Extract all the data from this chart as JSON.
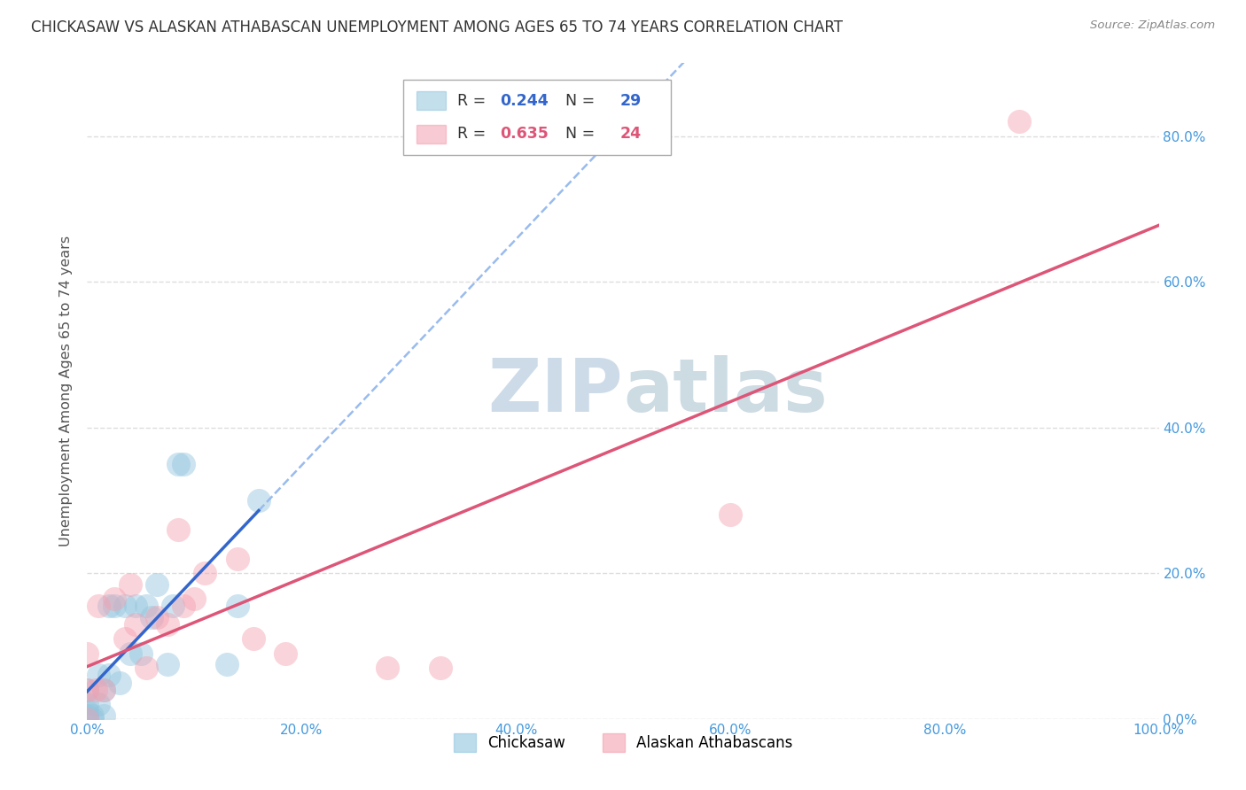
{
  "title": "CHICKASAW VS ALASKAN ATHABASCAN UNEMPLOYMENT AMONG AGES 65 TO 74 YEARS CORRELATION CHART",
  "source": "Source: ZipAtlas.com",
  "ylabel": "Unemployment Among Ages 65 to 74 years",
  "watermark": "ZIPAtlas",
  "xlim": [
    0,
    1.0
  ],
  "ylim": [
    0,
    0.9
  ],
  "xticks": [
    0.0,
    0.2,
    0.4,
    0.6,
    0.8,
    1.0
  ],
  "xticklabels": [
    "0.0%",
    "20.0%",
    "40.0%",
    "60.0%",
    "80.0%",
    "100.0%"
  ],
  "yticks": [
    0.0,
    0.2,
    0.4,
    0.6,
    0.8
  ],
  "right_yticklabels": [
    "0.0%",
    "20.0%",
    "40.0%",
    "60.0%",
    "80.0%"
  ],
  "series1_name": "Chickasaw",
  "series1_R": 0.244,
  "series1_N": 29,
  "series1_color": "#92c5de",
  "series1_x": [
    0.0,
    0.0,
    0.0,
    0.0,
    0.0,
    0.005,
    0.005,
    0.01,
    0.01,
    0.015,
    0.015,
    0.02,
    0.02,
    0.025,
    0.03,
    0.035,
    0.04,
    0.045,
    0.05,
    0.055,
    0.06,
    0.065,
    0.075,
    0.08,
    0.085,
    0.09,
    0.13,
    0.14,
    0.16
  ],
  "series1_y": [
    0.0,
    0.005,
    0.01,
    0.02,
    0.04,
    0.0,
    0.005,
    0.02,
    0.06,
    0.005,
    0.04,
    0.06,
    0.155,
    0.155,
    0.05,
    0.155,
    0.09,
    0.155,
    0.09,
    0.155,
    0.14,
    0.185,
    0.075,
    0.155,
    0.35,
    0.35,
    0.075,
    0.155,
    0.3
  ],
  "series2_name": "Alaskan Athabascans",
  "series2_R": 0.635,
  "series2_N": 24,
  "series2_color": "#f4a0b0",
  "series2_x": [
    0.0,
    0.0,
    0.0,
    0.008,
    0.01,
    0.015,
    0.025,
    0.035,
    0.04,
    0.045,
    0.055,
    0.065,
    0.075,
    0.085,
    0.09,
    0.1,
    0.11,
    0.14,
    0.155,
    0.185,
    0.28,
    0.33,
    0.6,
    0.87
  ],
  "series2_y": [
    0.0,
    0.04,
    0.09,
    0.04,
    0.155,
    0.04,
    0.165,
    0.11,
    0.185,
    0.13,
    0.07,
    0.14,
    0.13,
    0.26,
    0.155,
    0.165,
    0.2,
    0.22,
    0.11,
    0.09,
    0.07,
    0.07,
    0.28,
    0.82
  ],
  "trendline1_color": "#3366cc",
  "trendline1_dash_color": "#99bbee",
  "trendline2_color": "#dd5577",
  "background_color": "#ffffff",
  "grid_color": "#dddddd",
  "title_color": "#333333",
  "axis_color": "#4499dd",
  "watermark_color": "#c8d8e8"
}
